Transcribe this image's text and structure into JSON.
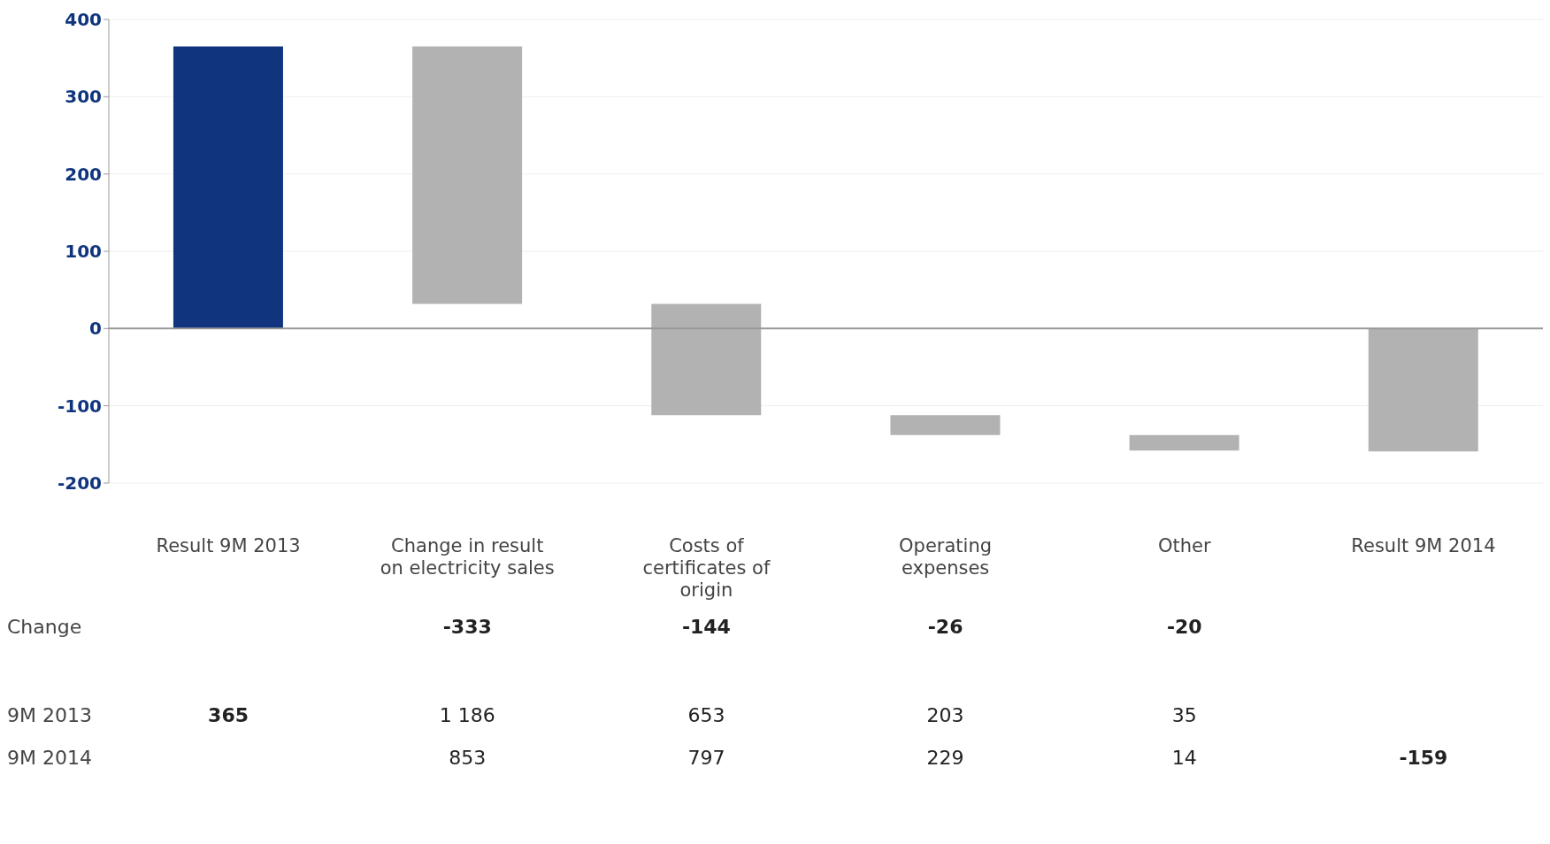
{
  "chart_data": {
    "type": "bar",
    "categories": [
      "Result 9M 2013",
      "Change in result on electricity sales",
      "Costs of certificates of origin",
      "Operating expenses",
      "Other",
      "Result 9M 2014"
    ],
    "values": [
      365,
      -333,
      -144,
      -26,
      -20,
      -159
    ],
    "base": [
      0,
      365,
      32,
      -112,
      -138,
      0
    ],
    "colors": [
      "#10357e",
      "#b2b2b2",
      "#b2b2b2",
      "#b2b2b2",
      "#b2b2b2",
      "#b2b2b2"
    ],
    "value_labels": [
      null,
      "-333",
      "-144",
      "-26",
      "-20",
      null
    ],
    "ylim": [
      -200,
      400
    ],
    "yticks": [
      -200,
      -100,
      0,
      100,
      200,
      300,
      400
    ],
    "grid": "y",
    "legend": false,
    "ref_lines": [
      {
        "axis": "y",
        "value": 0,
        "color": "#999999"
      }
    ],
    "annotations": [
      "Change",
      "9M 2013",
      "365",
      "1 186",
      "653",
      "203",
      "35",
      "9M 2014",
      "853",
      "797",
      "229",
      "14",
      "-159"
    ]
  }
}
